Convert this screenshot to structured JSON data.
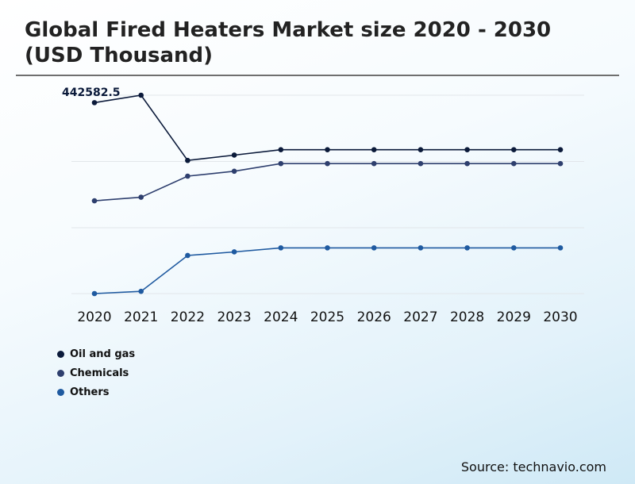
{
  "title": "Global Fired Heaters Market size 2020 - 2030 (USD Thousand)",
  "source": "Source: technavio.com",
  "chart_data": {
    "type": "line",
    "title": "Global Fired Heaters Market size 2020 - 2030 (USD Thousand)",
    "xlabel": "",
    "ylabel": "",
    "categories": [
      "2020",
      "2021",
      "2022",
      "2023",
      "2024",
      "2025",
      "2026",
      "2027",
      "2028",
      "2029",
      "2030"
    ],
    "ylim": [
      0,
      442582.5
    ],
    "grid": true,
    "legend_position": "bottom-left",
    "series": [
      {
        "name": "Oil and gas",
        "color": "#0b1a3a",
        "values": [
          426000,
          442582.5,
          297000,
          309000,
          321000,
          321000,
          321000,
          321000,
          321000,
          321000,
          321000
        ]
      },
      {
        "name": "Chemicals",
        "color": "#2e3f6e",
        "values": [
          207000,
          215000,
          262000,
          273000,
          290000,
          290000,
          290000,
          290000,
          290000,
          290000,
          290000
        ]
      },
      {
        "name": "Others",
        "color": "#1f5aa0",
        "values": [
          0,
          5000,
          85000,
          93000,
          102000,
          102000,
          102000,
          102000,
          102000,
          102000,
          102000
        ]
      }
    ],
    "annotations": [
      {
        "series": 0,
        "index": 1,
        "text": "442582.5"
      }
    ]
  }
}
